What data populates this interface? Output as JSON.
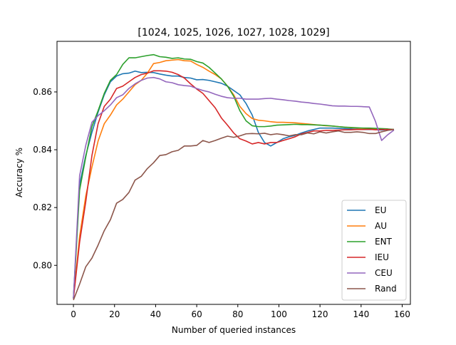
{
  "chart_data": {
    "type": "line",
    "title": "[1024, 1025, 1026, 1027, 1028, 1029]",
    "xlabel": "Number of queried instances",
    "ylabel": "Accuracy %",
    "xlim": [
      -8,
      164
    ],
    "ylim": [
      0.7865,
      0.8775
    ],
    "xticks": [
      0,
      20,
      40,
      60,
      80,
      100,
      120,
      140,
      160
    ],
    "yticks": [
      0.8,
      0.82,
      0.84,
      0.86
    ],
    "ytick_labels": [
      "0.80",
      "0.82",
      "0.84",
      "0.86"
    ],
    "legend_position": "lower right",
    "grid": false,
    "series": [
      {
        "name": "EU",
        "color": "#1f77b4",
        "x": [
          0,
          3,
          6,
          9,
          12,
          15,
          18,
          21,
          24,
          27,
          30,
          33,
          36,
          39,
          42,
          45,
          48,
          51,
          54,
          57,
          60,
          63,
          66,
          69,
          72,
          75,
          78,
          81,
          84,
          87,
          90,
          93,
          96,
          99,
          102,
          105,
          108,
          111,
          114,
          117,
          120,
          123,
          126,
          129,
          132,
          135,
          138,
          141,
          144,
          147,
          150,
          153,
          156
        ],
        "y": [
          0.7885,
          0.828,
          0.838,
          0.846,
          0.853,
          0.859,
          0.8635,
          0.8655,
          0.8663,
          0.8665,
          0.8672,
          0.8667,
          0.8668,
          0.8667,
          0.8662,
          0.8658,
          0.8655,
          0.8655,
          0.865,
          0.8648,
          0.8642,
          0.8643,
          0.864,
          0.8635,
          0.863,
          0.862,
          0.8605,
          0.859,
          0.856,
          0.852,
          0.846,
          0.8425,
          0.8413,
          0.8425,
          0.8438,
          0.8445,
          0.845,
          0.8458,
          0.8465,
          0.847,
          0.8475,
          0.8475,
          0.8475,
          0.8474,
          0.8473,
          0.8472,
          0.8471,
          0.847,
          0.847,
          0.847,
          0.8468,
          0.847,
          0.847
        ]
      },
      {
        "name": "AU",
        "color": "#ff7f0e",
        "x": [
          0,
          3,
          6,
          9,
          12,
          15,
          18,
          21,
          24,
          27,
          30,
          33,
          36,
          39,
          42,
          45,
          48,
          51,
          54,
          57,
          60,
          63,
          66,
          69,
          72,
          75,
          78,
          81,
          84,
          87,
          90,
          93,
          96,
          99,
          102,
          105,
          108,
          111,
          114,
          117,
          120,
          123,
          126,
          129,
          132,
          135,
          138,
          141,
          144,
          147,
          150,
          153,
          156
        ],
        "y": [
          0.7885,
          0.81,
          0.824,
          0.834,
          0.843,
          0.849,
          0.852,
          0.8555,
          0.8575,
          0.86,
          0.8625,
          0.864,
          0.8665,
          0.8698,
          0.8702,
          0.8708,
          0.871,
          0.8712,
          0.8708,
          0.8707,
          0.8695,
          0.8685,
          0.8672,
          0.866,
          0.8645,
          0.862,
          0.859,
          0.855,
          0.8525,
          0.8508,
          0.8502,
          0.85,
          0.8497,
          0.8495,
          0.8495,
          0.8494,
          0.8493,
          0.8491,
          0.8489,
          0.8487,
          0.8485,
          0.8483,
          0.8482,
          0.848,
          0.8478,
          0.8476,
          0.8475,
          0.8474,
          0.8473,
          0.8472,
          0.847,
          0.847,
          0.847
        ]
      },
      {
        "name": "ENT",
        "color": "#2ca02c",
        "x": [
          0,
          3,
          6,
          9,
          12,
          15,
          18,
          21,
          24,
          27,
          30,
          33,
          36,
          39,
          42,
          45,
          48,
          51,
          54,
          57,
          60,
          63,
          66,
          69,
          72,
          75,
          78,
          81,
          84,
          87,
          90,
          93,
          96,
          99,
          102,
          105,
          108,
          111,
          114,
          117,
          120,
          123,
          126,
          129,
          132,
          135,
          138,
          141,
          144,
          147,
          150,
          153,
          156
        ],
        "y": [
          0.7885,
          0.826,
          0.8375,
          0.848,
          0.8535,
          0.8595,
          0.864,
          0.866,
          0.8695,
          0.8718,
          0.8718,
          0.8722,
          0.8726,
          0.8729,
          0.8722,
          0.872,
          0.8716,
          0.8718,
          0.8714,
          0.8713,
          0.8705,
          0.87,
          0.8685,
          0.8665,
          0.8645,
          0.862,
          0.8585,
          0.8535,
          0.85,
          0.8483,
          0.848,
          0.848,
          0.8482,
          0.8485,
          0.8486,
          0.8487,
          0.8488,
          0.8487,
          0.8487,
          0.8486,
          0.8485,
          0.8484,
          0.8482,
          0.848,
          0.8478,
          0.8477,
          0.8476,
          0.8475,
          0.8475,
          0.8474,
          0.8473,
          0.8472,
          0.847
        ]
      },
      {
        "name": "IEU",
        "color": "#d62728",
        "x": [
          0,
          3,
          6,
          9,
          12,
          15,
          18,
          21,
          24,
          27,
          30,
          33,
          36,
          39,
          42,
          45,
          48,
          51,
          54,
          57,
          60,
          63,
          66,
          69,
          72,
          75,
          78,
          81,
          84,
          87,
          90,
          93,
          96,
          99,
          102,
          105,
          108,
          111,
          114,
          117,
          120,
          123,
          126,
          129,
          132,
          135,
          138,
          141,
          144,
          147,
          150,
          153,
          156
        ],
        "y": [
          0.7885,
          0.808,
          0.822,
          0.838,
          0.849,
          0.855,
          0.8575,
          0.8612,
          0.862,
          0.8635,
          0.865,
          0.866,
          0.8665,
          0.8673,
          0.8673,
          0.8672,
          0.8668,
          0.866,
          0.8648,
          0.8628,
          0.861,
          0.8595,
          0.857,
          0.8545,
          0.851,
          0.8485,
          0.8458,
          0.8438,
          0.843,
          0.842,
          0.8425,
          0.842,
          0.8425,
          0.8425,
          0.8432,
          0.8438,
          0.8445,
          0.8455,
          0.846,
          0.8465,
          0.8465,
          0.8467,
          0.8467,
          0.8468,
          0.8469,
          0.8469,
          0.847,
          0.847,
          0.8471,
          0.8469,
          0.847,
          0.847,
          0.847
        ]
      },
      {
        "name": "CEU",
        "color": "#9467bd",
        "x": [
          0,
          3,
          6,
          9,
          12,
          15,
          18,
          21,
          24,
          27,
          30,
          33,
          36,
          39,
          42,
          45,
          48,
          51,
          54,
          57,
          60,
          63,
          66,
          69,
          72,
          75,
          78,
          81,
          84,
          87,
          90,
          93,
          96,
          99,
          102,
          105,
          108,
          111,
          114,
          117,
          120,
          123,
          126,
          129,
          132,
          135,
          138,
          141,
          144,
          147,
          150,
          153,
          156
        ],
        "y": [
          0.7885,
          0.831,
          0.8415,
          0.8495,
          0.8518,
          0.8535,
          0.8555,
          0.858,
          0.859,
          0.8612,
          0.8628,
          0.864,
          0.8648,
          0.865,
          0.8645,
          0.8635,
          0.8632,
          0.8625,
          0.8622,
          0.862,
          0.8612,
          0.8605,
          0.86,
          0.8592,
          0.8585,
          0.858,
          0.8578,
          0.8578,
          0.8575,
          0.8575,
          0.8575,
          0.8577,
          0.8578,
          0.8575,
          0.8573,
          0.857,
          0.8568,
          0.8565,
          0.8563,
          0.856,
          0.8558,
          0.8555,
          0.8552,
          0.8551,
          0.8551,
          0.855,
          0.855,
          0.8549,
          0.8548,
          0.8498,
          0.8432,
          0.8452,
          0.8468
        ]
      },
      {
        "name": "Rand",
        "color": "#8c564b",
        "x": [
          0,
          3,
          6,
          9,
          12,
          15,
          18,
          21,
          24,
          27,
          30,
          33,
          36,
          39,
          42,
          45,
          48,
          51,
          54,
          57,
          60,
          63,
          66,
          69,
          72,
          75,
          78,
          81,
          84,
          87,
          90,
          93,
          96,
          99,
          102,
          105,
          108,
          111,
          114,
          117,
          120,
          123,
          126,
          129,
          132,
          135,
          138,
          141,
          144,
          147,
          150,
          153,
          156
        ],
        "y": [
          0.788,
          0.7935,
          0.7995,
          0.8025,
          0.807,
          0.812,
          0.8158,
          0.8215,
          0.8228,
          0.8252,
          0.8295,
          0.8308,
          0.8335,
          0.8355,
          0.838,
          0.8383,
          0.8393,
          0.8398,
          0.8413,
          0.8413,
          0.8415,
          0.8432,
          0.8425,
          0.8432,
          0.844,
          0.8447,
          0.8443,
          0.8448,
          0.8455,
          0.8456,
          0.8455,
          0.8457,
          0.8452,
          0.8455,
          0.8452,
          0.8448,
          0.8452,
          0.8452,
          0.8458,
          0.8455,
          0.8462,
          0.8458,
          0.8462,
          0.8465,
          0.846,
          0.846,
          0.8462,
          0.846,
          0.8456,
          0.8456,
          0.8462,
          0.8467,
          0.847
        ]
      }
    ]
  }
}
